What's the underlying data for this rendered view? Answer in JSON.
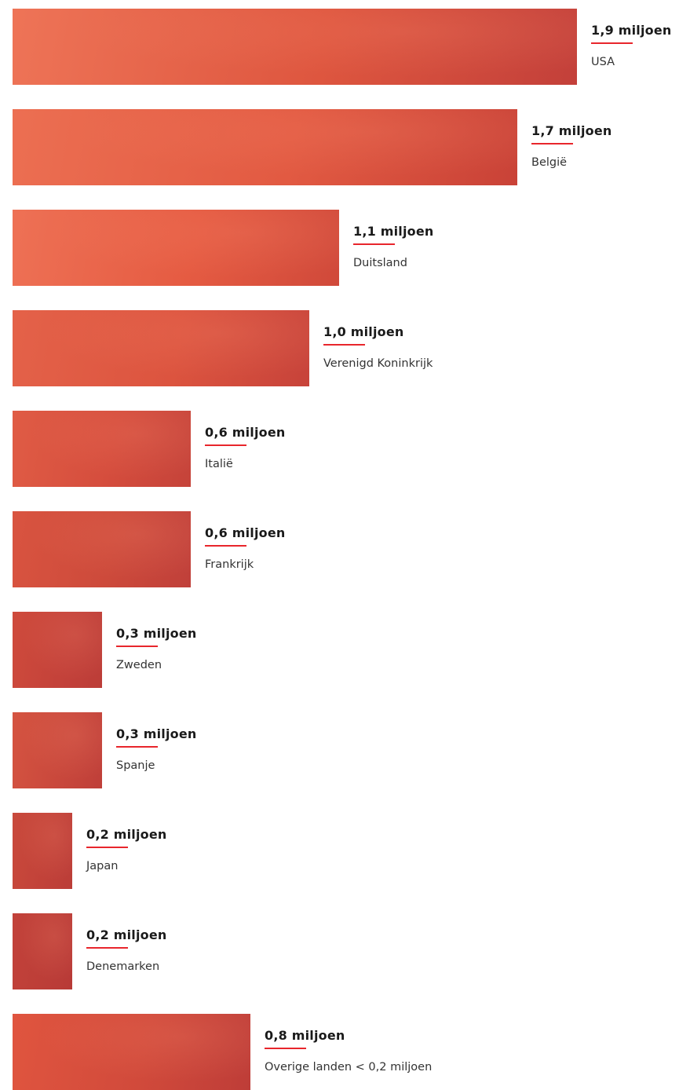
{
  "colors": {
    "bar_light": "#ec6e50",
    "bar_mid": "#de573f",
    "bar_dark": "#bf3c35",
    "rule": "#e8262c"
  },
  "chart_data": {
    "type": "bar",
    "orientation": "horizontal",
    "unit": "miljoen",
    "categories": [
      "USA",
      "België",
      "Duitsland",
      "Verenigd Koninkrijk",
      "Italië",
      "Frankrijk",
      "Zweden",
      "Spanje",
      "Japan",
      "Denemarken",
      "Overige landen < 0,2 miljoen"
    ],
    "values": [
      1.9,
      1.7,
      1.1,
      1.0,
      0.6,
      0.6,
      0.3,
      0.3,
      0.2,
      0.2,
      0.8
    ],
    "value_labels": [
      "1,9 miljoen",
      "1,7 miljoen",
      "1,1 miljoen",
      "1,0 miljoen",
      "0,6 miljoen",
      "0,6 miljoen",
      "0,3 miljoen",
      "0,3 miljoen",
      "0,2 miljoen",
      "0,2 miljoen",
      "0,8 miljoen"
    ],
    "title": "",
    "xlabel": "",
    "ylabel": "",
    "xlim": [
      0,
      1.9
    ],
    "grid": false,
    "legend": "none"
  }
}
